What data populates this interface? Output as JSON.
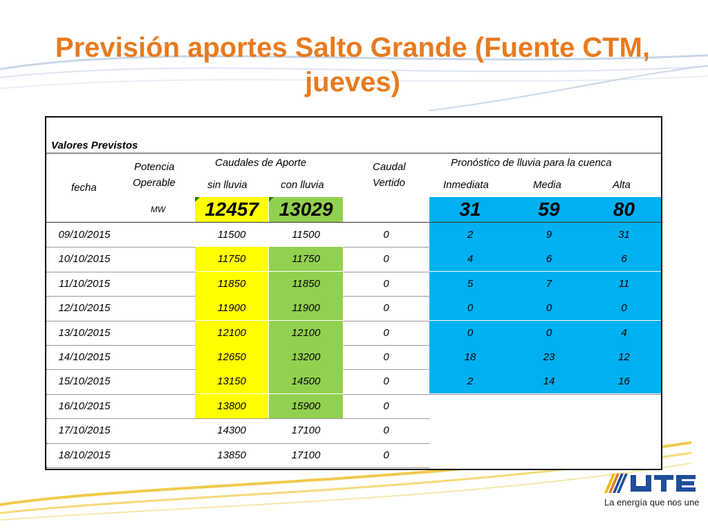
{
  "title": "Previsión aportes Salto Grande (Fuente CTM, jueves)",
  "table": {
    "section_label": "Valores Previstos",
    "headers": {
      "fecha": "fecha",
      "potencia_line1": "Potencia",
      "potencia_line2": "Operable",
      "caudales_group": "Caudales de Aporte",
      "sin_lluvia": "sin lluvia",
      "con_lluvia": "con lluvia",
      "caudal_line1": "Caudal",
      "caudal_line2": "Vertido",
      "pronostico_group": "Pronóstico de lluvia para la cuenca",
      "inmediata": "Inmediata",
      "media": "Media",
      "alta": "Alta"
    },
    "summary": {
      "unit": "MW",
      "sin_lluvia": "12457",
      "con_lluvia": "13029",
      "inmediata": "31",
      "media": "59",
      "alta": "80"
    },
    "rows": [
      {
        "fecha": "09/10/2015",
        "sin": "11500",
        "con": "11500",
        "vertido": "0",
        "inm": "2",
        "med": "9",
        "alta": "31"
      },
      {
        "fecha": "10/10/2015",
        "sin": "11750",
        "con": "11750",
        "vertido": "0",
        "inm": "4",
        "med": "6",
        "alta": "6"
      },
      {
        "fecha": "11/10/2015",
        "sin": "11850",
        "con": "11850",
        "vertido": "0",
        "inm": "5",
        "med": "7",
        "alta": "11"
      },
      {
        "fecha": "12/10/2015",
        "sin": "11900",
        "con": "11900",
        "vertido": "0",
        "inm": "0",
        "med": "0",
        "alta": "0"
      },
      {
        "fecha": "13/10/2015",
        "sin": "12100",
        "con": "12100",
        "vertido": "0",
        "inm": "0",
        "med": "0",
        "alta": "4"
      },
      {
        "fecha": "14/10/2015",
        "sin": "12650",
        "con": "13200",
        "vertido": "0",
        "inm": "18",
        "med": "23",
        "alta": "12"
      },
      {
        "fecha": "15/10/2015",
        "sin": "13150",
        "con": "14500",
        "vertido": "0",
        "inm": "2",
        "med": "14",
        "alta": "16"
      },
      {
        "fecha": "16/10/2015",
        "sin": "13800",
        "con": "15900",
        "vertido": "0"
      },
      {
        "fecha": "17/10/2015",
        "sin": "14300",
        "con": "17100",
        "vertido": "0"
      },
      {
        "fecha": "18/10/2015",
        "sin": "13850",
        "con": "17100",
        "vertido": "0"
      }
    ]
  },
  "logo": {
    "text": "UTE",
    "tagline": "La energía que nos une"
  },
  "colors": {
    "title": "#E87A1E",
    "yellow": "#FFFF00",
    "green": "#92D050",
    "blue": "#00B0F0",
    "swoosh": "#C9D7EA"
  }
}
